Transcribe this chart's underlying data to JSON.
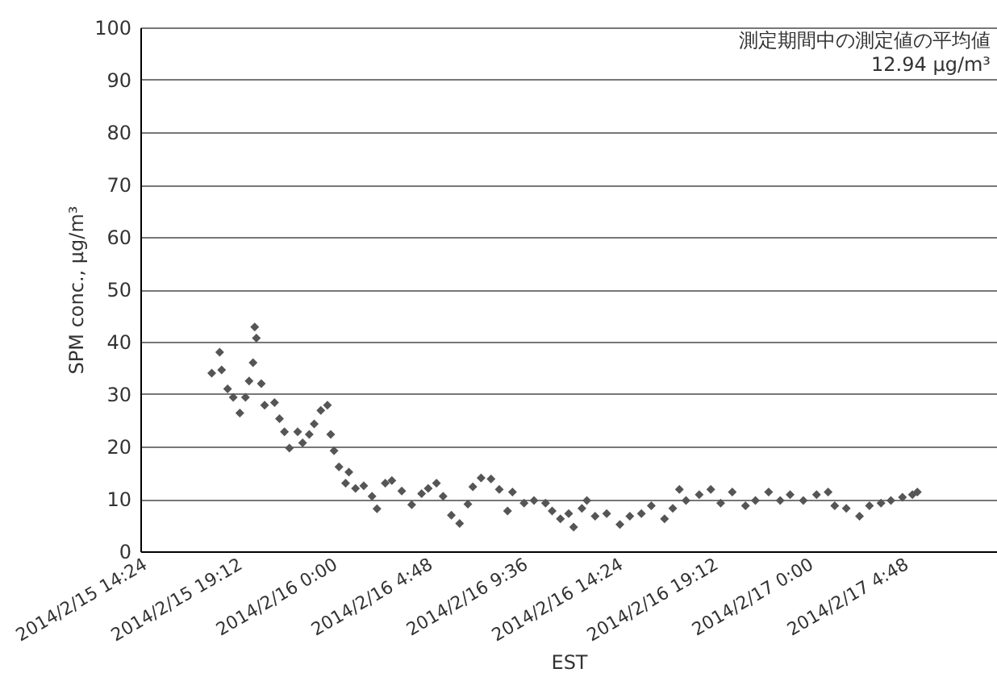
{
  "chart_data": {
    "type": "scatter",
    "xlabel": "EST",
    "ylabel": "SPM conc.,  μg/m³",
    "annotations": [
      "測定期間中の測定値の平均値",
      "12.94 μg/m³"
    ],
    "x": [
      "2014-02-15T18:00",
      "2014-02-15T18:24",
      "2014-02-15T18:30",
      "2014-02-15T18:48",
      "2014-02-15T19:05",
      "2014-02-15T19:25",
      "2014-02-15T19:42",
      "2014-02-15T19:53",
      "2014-02-15T20:05",
      "2014-02-15T20:10",
      "2014-02-15T20:15",
      "2014-02-15T20:30",
      "2014-02-15T20:40",
      "2014-02-15T21:10",
      "2014-02-15T21:25",
      "2014-02-15T21:40",
      "2014-02-15T21:55",
      "2014-02-15T22:20",
      "2014-02-15T22:35",
      "2014-02-15T22:55",
      "2014-02-15T23:10",
      "2014-02-15T23:30",
      "2014-02-15T23:50",
      "2014-02-16T00:00",
      "2014-02-16T00:10",
      "2014-02-16T00:25",
      "2014-02-16T00:45",
      "2014-02-16T00:55",
      "2014-02-16T01:15",
      "2014-02-16T01:40",
      "2014-02-16T02:05",
      "2014-02-16T02:20",
      "2014-02-16T02:45",
      "2014-02-16T03:05",
      "2014-02-16T03:35",
      "2014-02-16T04:05",
      "2014-02-16T04:35",
      "2014-02-16T04:55",
      "2014-02-16T05:20",
      "2014-02-16T05:40",
      "2014-02-16T06:05",
      "2014-02-16T06:30",
      "2014-02-16T06:55",
      "2014-02-16T07:10",
      "2014-02-16T07:35",
      "2014-02-16T08:05",
      "2014-02-16T08:30",
      "2014-02-16T08:55",
      "2014-02-16T09:10",
      "2014-02-16T09:45",
      "2014-02-16T10:15",
      "2014-02-16T10:50",
      "2014-02-16T11:10",
      "2014-02-16T11:35",
      "2014-02-16T12:00",
      "2014-02-16T12:15",
      "2014-02-16T12:40",
      "2014-02-16T12:55",
      "2014-02-16T13:20",
      "2014-02-16T13:55",
      "2014-02-16T14:35",
      "2014-02-16T15:05",
      "2014-02-16T15:40",
      "2014-02-16T16:10",
      "2014-02-16T16:50",
      "2014-02-16T17:15",
      "2014-02-16T17:35",
      "2014-02-16T17:55",
      "2014-02-16T18:35",
      "2014-02-16T19:10",
      "2014-02-16T19:40",
      "2014-02-16T20:15",
      "2014-02-16T20:55",
      "2014-02-16T21:25",
      "2014-02-16T22:05",
      "2014-02-16T22:40",
      "2014-02-16T23:10",
      "2014-02-16T23:50",
      "2014-02-17T00:30",
      "2014-02-17T01:05",
      "2014-02-17T01:25",
      "2014-02-17T02:00",
      "2014-02-17T02:40",
      "2014-02-17T03:10",
      "2014-02-17T03:45",
      "2014-02-17T04:15",
      "2014-02-17T04:50",
      "2014-02-17T05:20",
      "2014-02-17T05:35"
    ],
    "series": [
      {
        "color": "#555555",
        "values": [
          34,
          38,
          34.6,
          31,
          29.4,
          26.4,
          29.4,
          32.5,
          36,
          42.8,
          40.7,
          32,
          27.9,
          28.4,
          25.3,
          22.8,
          19.7,
          22.8,
          20.7,
          22.3,
          24.3,
          26.9,
          27.9,
          22.3,
          19.2,
          16.1,
          13,
          15.1,
          12,
          12.5,
          10.5,
          8.1,
          13,
          13.5,
          11.5,
          8.9,
          11,
          12,
          13,
          10.5,
          6.9,
          5.3,
          9,
          12.3,
          14,
          13.8,
          11.8,
          7.7,
          11.3,
          9.2,
          9.7,
          9.2,
          7.7,
          6.2,
          7.2,
          4.6,
          8.2,
          9.7,
          6.7,
          7.2,
          5.1,
          6.7,
          7.2,
          8.7,
          6.2,
          8.2,
          11.8,
          9.7,
          10.8,
          11.8,
          9.2,
          11.3,
          8.7,
          9.7,
          11.3,
          9.7,
          10.8,
          9.7,
          10.8,
          11.3,
          8.7,
          8.2,
          6.7,
          8.7,
          9.2,
          9.7,
          10.3,
          10.8,
          11.3
        ]
      }
    ],
    "marker": "diamond",
    "grid": "y",
    "xlim": [
      "2014-02-15T14:24",
      "2014-02-17T09:36"
    ],
    "xticks": [
      {
        "value": "2014-02-15T14:24",
        "label": "2014/2/15 14:24"
      },
      {
        "value": "2014-02-15T19:12",
        "label": "2014/2/15 19:12"
      },
      {
        "value": "2014-02-16T00:00",
        "label": "2014/2/16 0:00"
      },
      {
        "value": "2014-02-16T04:48",
        "label": "2014/2/16 4:48"
      },
      {
        "value": "2014-02-16T09:36",
        "label": "2014/2/16 9:36"
      },
      {
        "value": "2014-02-16T14:24",
        "label": "2014/2/16 14:24"
      },
      {
        "value": "2014-02-16T19:12",
        "label": "2014/2/16 19:12"
      },
      {
        "value": "2014-02-17T00:00",
        "label": "2014/2/17 0:00"
      },
      {
        "value": "2014-02-17T04:48",
        "label": "2014/2/17 4:48"
      }
    ],
    "ylim": [
      0,
      100
    ],
    "yticks": [
      0,
      10,
      20,
      30,
      40,
      50,
      60,
      70,
      80,
      90,
      100
    ]
  }
}
